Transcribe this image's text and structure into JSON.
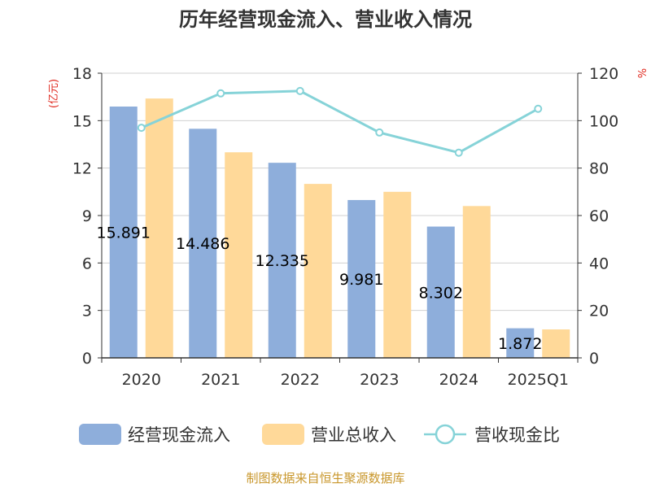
{
  "chart_data": {
    "type": "bar",
    "title": "历年经营现金流入、营业收入情况",
    "categories": [
      "2020",
      "2021",
      "2022",
      "2023",
      "2024",
      "2025Q1"
    ],
    "series": [
      {
        "name": "经营现金流入",
        "axis": "left",
        "type": "bar",
        "color": "#8eaedb",
        "values": [
          15.891,
          14.486,
          12.335,
          9.981,
          8.302,
          1.872
        ],
        "data_labels": [
          "15.891",
          "14.486",
          "12.335",
          "9.981",
          "8.302",
          "1.872"
        ]
      },
      {
        "name": "营业总收入",
        "axis": "left",
        "type": "bar",
        "color": "#ffd999",
        "values": [
          16.4,
          13.0,
          11.0,
          10.5,
          9.6,
          1.8
        ]
      },
      {
        "name": "营收现金比",
        "axis": "right",
        "type": "line",
        "color": "#86d3d8",
        "values": [
          97,
          111.5,
          112.5,
          95,
          86.5,
          105
        ]
      }
    ],
    "y_left": {
      "label": "(亿元)",
      "ylim": [
        0,
        18
      ],
      "ticks": [
        0,
        3,
        6,
        9,
        12,
        15,
        18
      ]
    },
    "y_right": {
      "label": "%",
      "ylim": [
        0,
        120
      ],
      "ticks": [
        0,
        20,
        40,
        60,
        80,
        100,
        120
      ]
    },
    "grid": true,
    "legend_position": "bottom",
    "source": "制图数据来自恒生聚源数据库"
  }
}
